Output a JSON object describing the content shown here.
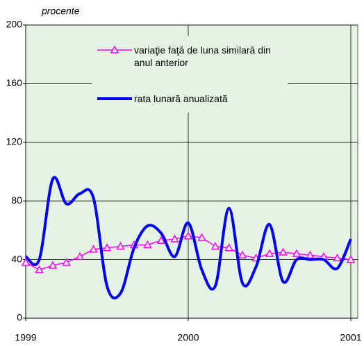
{
  "chart_data": {
    "type": "line",
    "y_label": "procente",
    "categories": [
      "1999",
      null,
      null,
      null,
      null,
      null,
      null,
      null,
      null,
      null,
      null,
      null,
      "2000",
      null,
      null,
      null,
      null,
      null,
      null,
      null,
      null,
      null,
      null,
      null,
      "2001"
    ],
    "series": [
      {
        "name": "variaţie faţă de luna similară din anul anterior",
        "color": "#ff00ff",
        "marker": "triangle",
        "values": [
          38,
          33,
          36,
          38,
          42,
          47,
          48,
          49,
          50,
          50,
          53,
          54,
          56,
          55,
          49,
          48,
          43,
          41,
          44,
          45,
          44,
          43,
          42,
          41,
          40
        ]
      },
      {
        "name": "rata lunară anualizată",
        "color": "#0000ff",
        "marker": "none",
        "values": [
          42,
          40,
          95,
          78,
          85,
          82,
          22,
          17,
          48,
          63,
          58,
          42,
          65,
          33,
          22,
          75,
          24,
          35,
          64,
          25,
          40,
          40,
          40,
          34,
          54
        ]
      }
    ],
    "ylim": [
      0,
      200
    ],
    "yticks": [
      0,
      40,
      80,
      120,
      160,
      200
    ],
    "grid": true,
    "background": "#e4f3e4"
  }
}
